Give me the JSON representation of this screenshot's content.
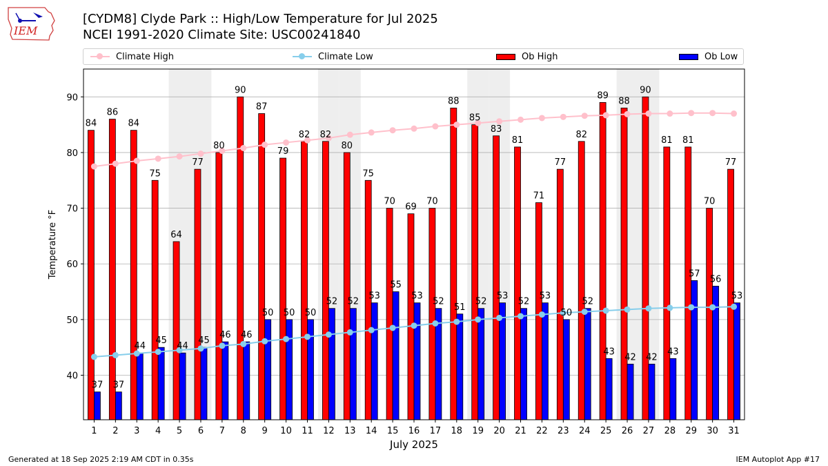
{
  "header": {
    "title_line1": "[CYDM8] Clyde Park :: High/Low Temperature for Jul 2025",
    "title_line2": "NCEI 1991-2020 Climate Site: USC00241840"
  },
  "logo": {
    "text": "IEM"
  },
  "footer": {
    "generated": "Generated at 18 Sep 2025 2:19 AM CDT in 0.35s",
    "app": "IEM Autoplot App #17"
  },
  "legend": {
    "climate_high": "Climate High",
    "climate_low": "Climate Low",
    "ob_high": "Ob High",
    "ob_low": "Ob Low"
  },
  "colors": {
    "ob_high": "#ff0000",
    "ob_low": "#0000ff",
    "climate_high": "#ffc0cb",
    "climate_low": "#87ceeb",
    "weekend_band": "#eeeeee"
  },
  "chart_data": {
    "type": "bar",
    "title": "[CYDM8] Clyde Park :: High/Low Temperature for Jul 2025",
    "xlabel": "July 2025",
    "ylabel": "Temperature °F",
    "ylim": [
      32,
      95
    ],
    "yticks": [
      40,
      50,
      60,
      70,
      80,
      90
    ],
    "grid": true,
    "legend_position": "top",
    "categories": [
      "1",
      "2",
      "3",
      "4",
      "5",
      "6",
      "7",
      "8",
      "9",
      "10",
      "11",
      "12",
      "13",
      "14",
      "15",
      "16",
      "17",
      "18",
      "19",
      "20",
      "21",
      "22",
      "23",
      "24",
      "25",
      "26",
      "27",
      "28",
      "29",
      "30",
      "31"
    ],
    "shaded_days": [
      5,
      6,
      12,
      13,
      19,
      20,
      26,
      27
    ],
    "series": [
      {
        "name": "Ob High",
        "kind": "bar",
        "values": [
          84,
          86,
          84,
          75,
          64,
          77,
          80,
          90,
          87,
          79,
          82,
          82,
          80,
          75,
          70,
          69,
          70,
          88,
          85,
          83,
          81,
          71,
          77,
          82,
          89,
          88,
          90,
          81,
          81,
          70,
          77
        ]
      },
      {
        "name": "Ob Low",
        "kind": "bar",
        "values": [
          37,
          37,
          44,
          45,
          44,
          45,
          46,
          46,
          50,
          50,
          50,
          52,
          52,
          53,
          55,
          53,
          52,
          51,
          52,
          53,
          52,
          53,
          50,
          52,
          43,
          42,
          42,
          43,
          57,
          56,
          53
        ]
      },
      {
        "name": "Climate High",
        "kind": "line",
        "values": [
          77.5,
          78.0,
          78.5,
          78.9,
          79.3,
          79.8,
          80.3,
          80.8,
          81.4,
          81.8,
          82.2,
          82.6,
          83.2,
          83.6,
          84.0,
          84.3,
          84.7,
          85.0,
          85.3,
          85.6,
          85.9,
          86.2,
          86.4,
          86.6,
          86.7,
          86.9,
          87.0,
          87.0,
          87.1,
          87.1,
          87.0
        ]
      },
      {
        "name": "Climate Low",
        "kind": "line",
        "values": [
          43.3,
          43.6,
          43.9,
          44.2,
          44.5,
          44.8,
          45.3,
          45.6,
          46.1,
          46.5,
          46.9,
          47.3,
          47.7,
          48.1,
          48.5,
          48.9,
          49.3,
          49.6,
          50.0,
          50.3,
          50.6,
          50.9,
          51.2,
          51.4,
          51.6,
          51.8,
          52.0,
          52.1,
          52.2,
          52.2,
          52.3
        ]
      }
    ]
  }
}
